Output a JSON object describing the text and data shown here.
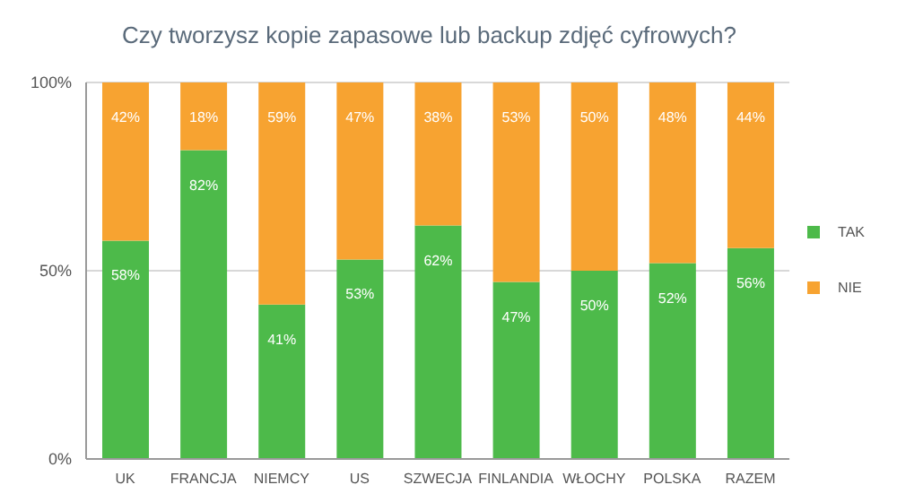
{
  "chart_data": {
    "type": "bar",
    "title": "Czy tworzysz kopie zapasowe lub backup zdjęć cyfrowych?",
    "categories": [
      "UK",
      "FRANCJA",
      "NIEMCY",
      "US",
      "SZWECJA",
      "FINLANDIA",
      "WŁOCHY",
      "POLSKA",
      "RAZEM"
    ],
    "stacked": true,
    "series": [
      {
        "name": "TAK",
        "color": "#4dba4a",
        "values": [
          58,
          82,
          41,
          53,
          62,
          47,
          50,
          52,
          56
        ],
        "value_labels": [
          "58%",
          "82%",
          "41%",
          "53%",
          "62%",
          "47%",
          "50%",
          "52%",
          "56%"
        ]
      },
      {
        "name": "NIE",
        "color": "#f7a331",
        "values": [
          42,
          18,
          59,
          47,
          38,
          53,
          50,
          48,
          44
        ],
        "value_labels": [
          "42%",
          "18%",
          "59%",
          "47%",
          "38%",
          "53%",
          "50%",
          "48%",
          "44%"
        ]
      }
    ],
    "ylim": [
      0,
      100
    ],
    "yticks": [
      {
        "value": 0,
        "label": "0%"
      },
      {
        "value": 50,
        "label": "50%"
      },
      {
        "value": 100,
        "label": "100%"
      }
    ],
    "grid": "y",
    "legend": "right"
  }
}
